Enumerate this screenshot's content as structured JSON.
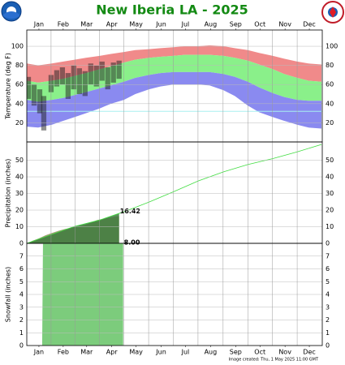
{
  "title": "New Iberia LA - 2025",
  "footer": "Image created: Thu, 1 May 2025 11:00 GMT",
  "chart_data": [
    {
      "type": "band",
      "y_label": "Temperature (deg F)",
      "xlim": [
        1,
        366
      ],
      "xticks": [
        {
          "value": 16,
          "label": "Jan"
        },
        {
          "value": 46,
          "label": "Feb"
        },
        {
          "value": 75,
          "label": "Mar"
        },
        {
          "value": 106,
          "label": "Apr"
        },
        {
          "value": 136,
          "label": "May"
        },
        {
          "value": 167,
          "label": "Jun"
        },
        {
          "value": 197,
          "label": "Jul"
        },
        {
          "value": 228,
          "label": "Aug"
        },
        {
          "value": 259,
          "label": "Sep"
        },
        {
          "value": 289,
          "label": "Oct"
        },
        {
          "value": 320,
          "label": "Nov"
        },
        {
          "value": 350,
          "label": "Dec"
        }
      ],
      "ylim": [
        0,
        117
      ],
      "yticks": [
        20,
        40,
        60,
        80,
        100
      ],
      "x": [
        1,
        15,
        32,
        46,
        60,
        74,
        91,
        105,
        121,
        135,
        152,
        166,
        182,
        196,
        213,
        227,
        244,
        258,
        274,
        288,
        305,
        319,
        335,
        349,
        365
      ],
      "record_high": [
        82,
        80,
        82,
        84,
        86,
        88,
        90,
        92,
        94,
        96,
        97,
        98,
        99,
        100,
        100,
        101,
        100,
        98,
        96,
        93,
        90,
        87,
        84,
        82,
        81
      ],
      "normal_high": [
        64,
        62,
        64,
        66,
        69,
        72,
        76,
        79,
        83,
        86,
        88,
        89,
        90,
        91,
        91,
        91,
        90,
        88,
        85,
        81,
        76,
        71,
        67,
        64,
        63
      ],
      "normal_low": [
        44,
        42,
        44,
        46,
        49,
        52,
        56,
        59,
        63,
        67,
        70,
        72,
        73,
        73,
        73,
        73,
        71,
        68,
        63,
        57,
        51,
        47,
        44,
        43,
        43
      ],
      "record_low": [
        16,
        15,
        18,
        22,
        26,
        30,
        35,
        40,
        44,
        50,
        55,
        58,
        60,
        60,
        60,
        59,
        54,
        48,
        38,
        31,
        26,
        22,
        18,
        15,
        14
      ],
      "colors": {
        "record_high": "#f08a8a",
        "normal": "#8af08a",
        "record_low": "#8a8af0"
      },
      "freeze_line": 32,
      "freeze_color": "#a8f0f0",
      "observed": {
        "color": "#202020",
        "x": [
          3,
          10,
          17,
          22,
          31,
          38,
          45,
          52,
          59,
          66,
          73,
          80,
          87,
          94,
          101,
          108,
          115
        ],
        "high": [
          68,
          60,
          55,
          48,
          70,
          75,
          78,
          72,
          80,
          77,
          74,
          82,
          80,
          84,
          78,
          83,
          85
        ],
        "low": [
          45,
          38,
          30,
          12,
          52,
          58,
          60,
          45,
          55,
          50,
          48,
          60,
          58,
          64,
          55,
          62,
          66
        ]
      }
    },
    {
      "type": "area",
      "y_label": "Precipitation (inches)",
      "xlim": [
        1,
        366
      ],
      "ylim": [
        0,
        61
      ],
      "yticks": [
        0,
        10,
        20,
        30,
        40,
        50
      ],
      "series": [
        {
          "color": "#a89878",
          "x": [
            1,
            8,
            16,
            24,
            32,
            40,
            48,
            56,
            64,
            72,
            80,
            88,
            100,
            115
          ],
          "values": [
            0,
            1.5,
            3.0,
            4.8,
            6.2,
            7.5,
            8.6,
            9.4,
            10.2,
            11.0,
            12.5,
            14.0,
            15.2,
            16.42
          ]
        },
        {
          "color": "#40dd40",
          "fill": "#3d7d3d",
          "x": [
            1,
            32,
            60,
            91,
            121,
            152,
            182,
            213,
            244,
            274,
            305,
            335,
            365
          ],
          "values": [
            0,
            5.4,
            10.2,
            14.0,
            19.0,
            24.8,
            31.0,
            37.6,
            43.0,
            47.4,
            51.0,
            55.0,
            59.5
          ]
        }
      ]
    },
    {
      "type": "area",
      "y_label": "Snowfall (inches)",
      "xlim": [
        1,
        366
      ],
      "ylim": [
        0,
        8
      ],
      "yticks": [
        0,
        1,
        2,
        3,
        4,
        5,
        6,
        7
      ],
      "xticks": [
        {
          "value": 16,
          "label": "Jan"
        },
        {
          "value": 46,
          "label": "Feb"
        },
        {
          "value": 75,
          "label": "Mar"
        },
        {
          "value": 106,
          "label": "Apr"
        },
        {
          "value": 136,
          "label": "May"
        },
        {
          "value": 167,
          "label": "Jun"
        },
        {
          "value": 197,
          "label": "Jul"
        },
        {
          "value": 228,
          "label": "Aug"
        },
        {
          "value": 259,
          "label": "Sep"
        },
        {
          "value": 289,
          "label": "Oct"
        },
        {
          "value": 320,
          "label": "Nov"
        },
        {
          "value": 350,
          "label": "Dec"
        }
      ],
      "series": [
        {
          "color": "#7ccc7c",
          "x": [
            1,
            20,
            21,
            120
          ],
          "values": [
            0,
            0,
            8,
            8
          ],
          "value_labels": [
            null,
            null,
            null,
            "8.00"
          ]
        }
      ]
    }
  ]
}
